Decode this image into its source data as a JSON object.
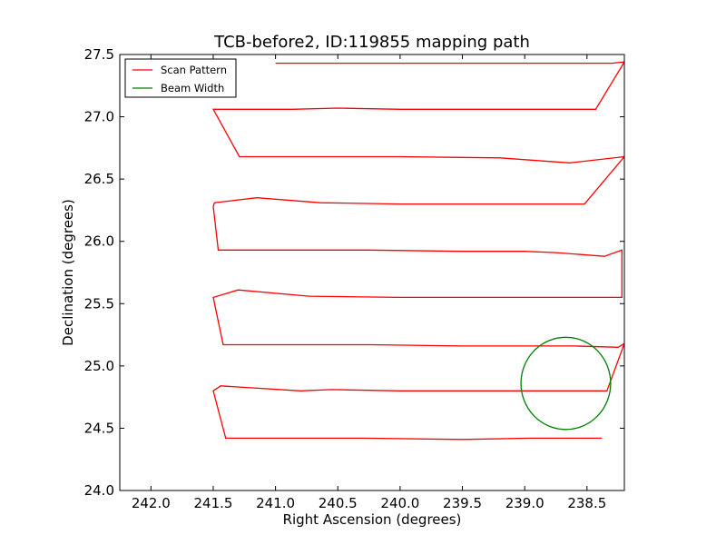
{
  "chart_data": {
    "type": "line",
    "title": "TCB-before2, ID:119855 mapping path",
    "xlabel": "Right Ascension (degrees)",
    "ylabel": "Declination (degrees)",
    "xlim": [
      242.25,
      238.2
    ],
    "ylim": [
      24.0,
      27.5
    ],
    "x_inverted": true,
    "grid": false,
    "legend_placement": "top-left",
    "xticks": [
      242.0,
      241.5,
      241.0,
      240.5,
      240.0,
      239.5,
      239.0,
      238.5
    ],
    "xtick_labels": [
      "242.0",
      "241.5",
      "241.0",
      "240.5",
      "240.0",
      "239.5",
      "239.0",
      "238.5"
    ],
    "yticks": [
      24.0,
      24.5,
      25.0,
      25.5,
      26.0,
      26.5,
      27.0,
      27.5
    ],
    "ytick_labels": [
      "24.0",
      "24.5",
      "25.0",
      "25.5",
      "26.0",
      "26.5",
      "27.0",
      "27.5"
    ],
    "series": [
      {
        "name": "Scan Pattern",
        "color": "#ff0000",
        "kind": "line",
        "points": [
          [
            238.38,
            24.42
          ],
          [
            238.7,
            24.42
          ],
          [
            238.95,
            24.42
          ],
          [
            239.5,
            24.41
          ],
          [
            240.3,
            24.42
          ],
          [
            241.4,
            24.42
          ],
          [
            241.5,
            24.8
          ],
          [
            241.44,
            24.84
          ],
          [
            240.8,
            24.8
          ],
          [
            240.55,
            24.81
          ],
          [
            240.0,
            24.8
          ],
          [
            239.25,
            24.8
          ],
          [
            238.34,
            24.8
          ],
          [
            238.2,
            25.18
          ],
          [
            238.25,
            25.15
          ],
          [
            238.6,
            25.16
          ],
          [
            238.85,
            25.16
          ],
          [
            239.5,
            25.16
          ],
          [
            240.25,
            25.17
          ],
          [
            241.42,
            25.17
          ],
          [
            241.5,
            25.55
          ],
          [
            241.3,
            25.61
          ],
          [
            240.73,
            25.56
          ],
          [
            240.0,
            25.55
          ],
          [
            239.5,
            25.55
          ],
          [
            238.97,
            25.55
          ],
          [
            238.22,
            25.55
          ],
          [
            238.22,
            25.93
          ],
          [
            238.36,
            25.88
          ],
          [
            238.75,
            25.91
          ],
          [
            239.0,
            25.92
          ],
          [
            239.5,
            25.92
          ],
          [
            240.25,
            25.93
          ],
          [
            241.46,
            25.93
          ],
          [
            241.5,
            26.28
          ],
          [
            241.49,
            26.31
          ],
          [
            241.15,
            26.35
          ],
          [
            240.64,
            26.31
          ],
          [
            240.0,
            26.3
          ],
          [
            239.5,
            26.3
          ],
          [
            238.52,
            26.3
          ],
          [
            238.2,
            26.68
          ],
          [
            238.64,
            26.63
          ],
          [
            239.2,
            26.67
          ],
          [
            240.0,
            26.68
          ],
          [
            241.29,
            26.68
          ],
          [
            241.5,
            27.06
          ],
          [
            240.86,
            27.06
          ],
          [
            240.5,
            27.07
          ],
          [
            240.0,
            27.06
          ],
          [
            239.0,
            27.06
          ],
          [
            238.43,
            27.06
          ],
          [
            238.2,
            27.44
          ],
          [
            238.3,
            27.43
          ],
          [
            239.0,
            27.43
          ],
          [
            239.5,
            27.43
          ],
          [
            240.0,
            27.43
          ],
          [
            241.0,
            27.43
          ]
        ]
      },
      {
        "name": "Beam Width",
        "color": "#008000",
        "kind": "circle",
        "center": [
          238.67,
          24.86
        ],
        "radius_x": 0.36,
        "radius_y": 0.37
      }
    ]
  }
}
